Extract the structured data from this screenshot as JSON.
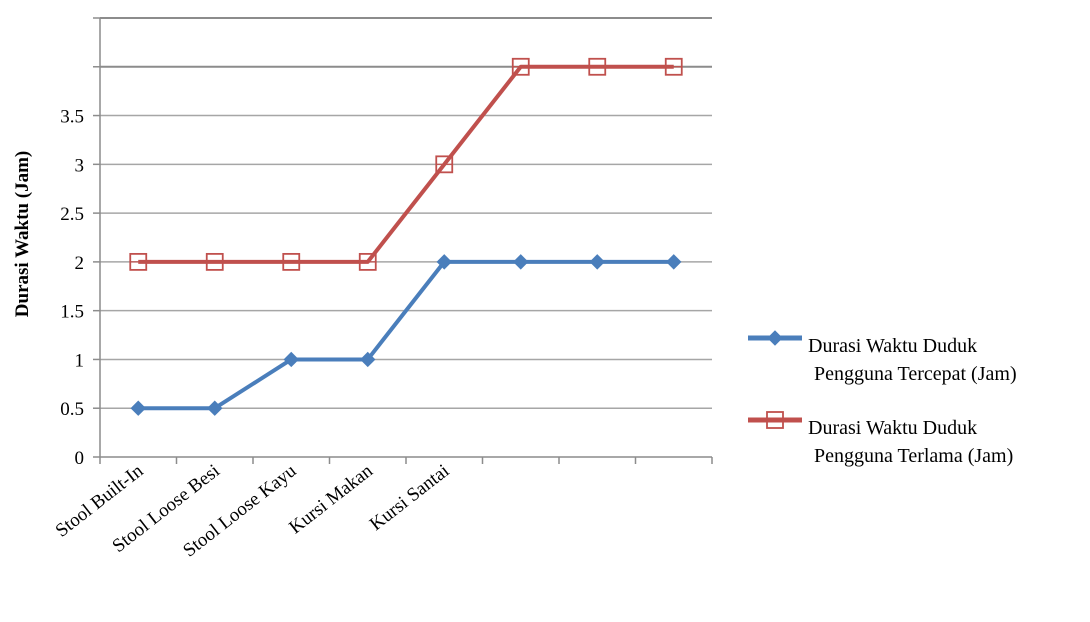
{
  "chart_data": {
    "type": "line",
    "title": "",
    "xlabel": "",
    "ylabel": "Durasi Waktu (Jam)",
    "ylim": [
      0,
      4.5
    ],
    "grid": true,
    "legend_position": "right",
    "categories": [
      "Stool Built-In",
      "Stool Loose Besi",
      "Stool Loose Kayu",
      "Kursi Makan",
      "Kursi Santai",
      "",
      "",
      ""
    ],
    "y_tick_labels": [
      "0",
      "0.5",
      "1",
      "1.5",
      "2",
      "2.5",
      "3",
      "3.5",
      "",
      ""
    ],
    "series": [
      {
        "name": "Durasi Waktu Duduk Pengguna Tercepat (Jam)",
        "legend_lines": [
          "Durasi Waktu Duduk",
          "Pengguna Tercepat (Jam)"
        ],
        "color": "#4a7ebb",
        "marker": "diamond",
        "values": [
          0.5,
          0.5,
          1,
          1,
          2,
          2,
          2,
          2
        ]
      },
      {
        "name": "Durasi Waktu Duduk Pengguna Terlama (Jam)",
        "legend_lines": [
          "Durasi Waktu Duduk",
          "Pengguna Terlama (Jam)"
        ],
        "color": "#c0504d",
        "marker": "square-open",
        "values": [
          2,
          2,
          2,
          2,
          3,
          4,
          4,
          4
        ]
      }
    ]
  }
}
